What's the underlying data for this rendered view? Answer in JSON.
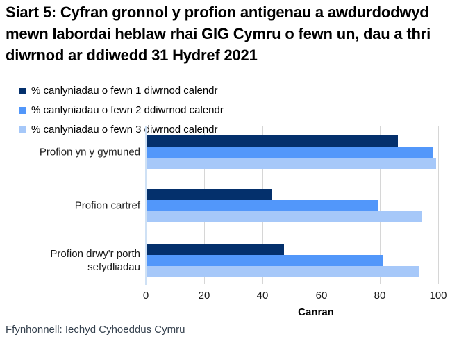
{
  "title": "Siart 5: Cyfran gronnol y profion antigenau a awdurdodwyd mewn labordai heblaw rhai GIG Cymru o fewn un, dau a thri diwrnod ar ddiwedd 31 Hydref 2021",
  "legend": {
    "items": [
      {
        "label": "% canlyniadau o fewn 1 diwrnod calendr",
        "color": "#04306C"
      },
      {
        "label": "% canlyniadau o fewn 2 ddiwrnod calendr",
        "color": "#5297FA"
      },
      {
        "label": "% canlyniadau o fewn 3 diwrnod calendr",
        "color": "#A6C8F9"
      }
    ]
  },
  "chart_data": {
    "type": "bar",
    "orientation": "horizontal",
    "title": "Siart 5: Cyfran gronnol y profion antigenau a awdurdodwyd mewn labordai heblaw rhai GIG Cymru o fewn un, dau a thri diwrnod ar ddiwedd 31 Hydref 2021",
    "categories": [
      "Profion yn y gymuned",
      "Profion cartref",
      "Profion drwy'r porth sefydliadau"
    ],
    "series": [
      {
        "name": "% canlyniadau o fewn 1 diwrnod calendr",
        "color": "#04306C",
        "values": [
          86,
          43,
          47
        ]
      },
      {
        "name": "% canlyniadau o fewn 2 ddiwrnod calendr",
        "color": "#5297FA",
        "values": [
          98,
          79,
          81
        ]
      },
      {
        "name": "% canlyniadau o fewn 3 diwrnod calendr",
        "color": "#A6C8F9",
        "values": [
          99,
          94,
          93
        ]
      }
    ],
    "xlabel": "Canran",
    "ylabel": "",
    "xticks": [
      0,
      20,
      40,
      60,
      80,
      100
    ],
    "xlim": [
      0,
      100
    ],
    "grid": true,
    "legend_position": "top",
    "gridline_color": "#D6D6D6",
    "axis_line_color": "#CFE1F5"
  },
  "footer": {
    "source": "Ffynhonnell: Iechyd Cyhoeddus Cymru"
  }
}
